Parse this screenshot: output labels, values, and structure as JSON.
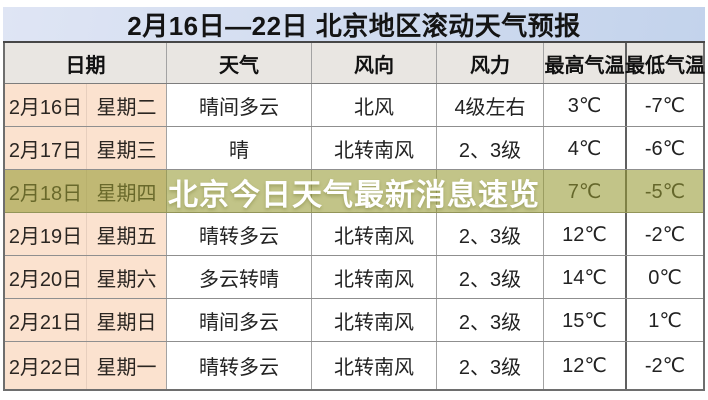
{
  "title": {
    "text": "2月16日—22日 北京地区滚动天气预报"
  },
  "table": {
    "headers": {
      "date": "日期",
      "weather": "天气",
      "wind": "风向",
      "force": "风力",
      "high": "最高气温",
      "low": "最低气温"
    },
    "rows": [
      {
        "date": "2月16日",
        "week": "星期二",
        "weather": "晴间多云",
        "wind": "北风",
        "force": "4级左右",
        "high": "3℃",
        "low": "-7℃"
      },
      {
        "date": "2月17日",
        "week": "星期三",
        "weather": "晴",
        "wind": "北转南风",
        "force": "2、3级",
        "high": "4℃",
        "low": "-6℃"
      },
      {
        "date": "2月18日",
        "week": "星期四",
        "weather": "",
        "wind": "",
        "force": "",
        "high": "7℃",
        "low": "-5℃"
      },
      {
        "date": "2月19日",
        "week": "星期五",
        "weather": "晴转多云",
        "wind": "北转南风",
        "force": "2、3级",
        "high": "12℃",
        "low": "-2℃"
      },
      {
        "date": "2月20日",
        "week": "星期六",
        "weather": "多云转晴",
        "wind": "北转南风",
        "force": "2、3级",
        "high": "14℃",
        "low": "0℃"
      },
      {
        "date": "2月21日",
        "week": "星期日",
        "weather": "晴间多云",
        "wind": "北转南风",
        "force": "2、3级",
        "high": "15℃",
        "low": "1℃"
      },
      {
        "date": "2月22日",
        "week": "星期一",
        "weather": "晴转多云",
        "wind": "北转南风",
        "force": "2、3级",
        "high": "12℃",
        "low": "-2℃"
      }
    ]
  },
  "overlay": {
    "text": "北京今日天气最新消息速览",
    "row_index": 2
  },
  "colors": {
    "title_bg_left": "#dfe5f4",
    "title_bg_right": "#c3d3ec",
    "header_bg": "#e9e6e2",
    "date_cell_bg": "#fbe2cf",
    "overlay_bg": "rgba(150,154,50,0.58)",
    "overlay_text": "#ffffff"
  },
  "chart_data": {
    "type": "table",
    "title": "2月16日—22日 北京地区滚动天气预报",
    "overlay_caption": "北京今日天气最新消息速览",
    "columns": [
      "日期",
      "星期",
      "天气",
      "风向",
      "风力",
      "最高气温",
      "最低气温"
    ],
    "rows": [
      [
        "2月16日",
        "星期二",
        "晴间多云",
        "北风",
        "4级左右",
        "3℃",
        "-7℃"
      ],
      [
        "2月17日",
        "星期三",
        "晴",
        "北转南风",
        "2、3级",
        "4℃",
        "-6℃"
      ],
      [
        "2月18日",
        "星期四",
        "",
        "",
        "",
        "7℃",
        "-5℃"
      ],
      [
        "2月19日",
        "星期五",
        "晴转多云",
        "北转南风",
        "2、3级",
        "12℃",
        "-2℃"
      ],
      [
        "2月20日",
        "星期六",
        "多云转晴",
        "北转南风",
        "2、3级",
        "14℃",
        "0℃"
      ],
      [
        "2月21日",
        "星期日",
        "晴间多云",
        "北转南风",
        "2、3级",
        "15℃",
        "1℃"
      ],
      [
        "2月22日",
        "星期一",
        "晴转多云",
        "北转南风",
        "2、3级",
        "12℃",
        "-2℃"
      ]
    ],
    "notes": "Row for 2月18日 is covered by a semi-transparent olive headline banner; its weather/wind/force cells are not legible."
  }
}
